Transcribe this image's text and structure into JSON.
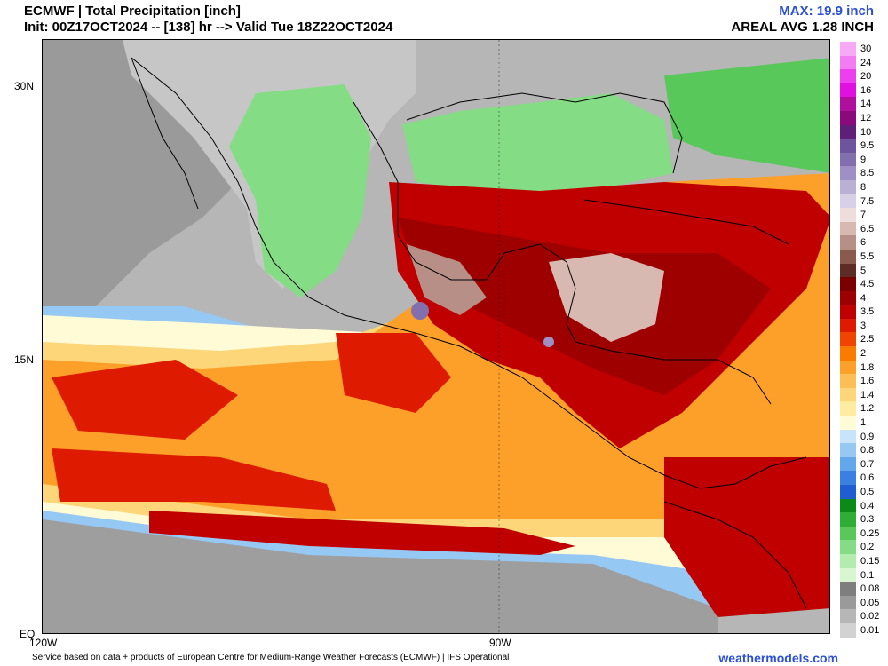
{
  "header": {
    "line1": "ECMWF | Total Precipitation [inch]",
    "line2": "Init: 00Z17OCT2024 -- [138] hr --> Valid Tue 18Z22OCT2024",
    "max": "MAX: 19.9 inch",
    "areal": "AREAL AVG 1.28 INCH"
  },
  "axes": {
    "lat_labels": [
      "30N",
      "15N",
      "EQ"
    ],
    "lon_labels": [
      "120W",
      "90W"
    ]
  },
  "legend": {
    "entries": [
      {
        "label": "30",
        "color": "#f7a8f7"
      },
      {
        "label": "24",
        "color": "#f27cf2"
      },
      {
        "label": "20",
        "color": "#ee3fee"
      },
      {
        "label": "16",
        "color": "#e010e0"
      },
      {
        "label": "14",
        "color": "#b0109e"
      },
      {
        "label": "12",
        "color": "#8a0a7c"
      },
      {
        "label": "10",
        "color": "#5e1f78"
      },
      {
        "label": "9.5",
        "color": "#6e549c"
      },
      {
        "label": "9",
        "color": "#8270ae"
      },
      {
        "label": "8.5",
        "color": "#9e90c4"
      },
      {
        "label": "8",
        "color": "#bab0d6"
      },
      {
        "label": "7.5",
        "color": "#d8d0e6"
      },
      {
        "label": "7",
        "color": "#efdcdc"
      },
      {
        "label": "6.5",
        "color": "#d7b9b2"
      },
      {
        "label": "6",
        "color": "#b78f86"
      },
      {
        "label": "5.5",
        "color": "#8a5a4e"
      },
      {
        "label": "5",
        "color": "#5e2c24"
      },
      {
        "label": "4.5",
        "color": "#7a0000"
      },
      {
        "label": "4",
        "color": "#9e0000"
      },
      {
        "label": "3.5",
        "color": "#c00000"
      },
      {
        "label": "3",
        "color": "#de1a00"
      },
      {
        "label": "2.5",
        "color": "#f04400"
      },
      {
        "label": "2",
        "color": "#fb7a00"
      },
      {
        "label": "1.8",
        "color": "#fda02a"
      },
      {
        "label": "1.6",
        "color": "#fdbe55"
      },
      {
        "label": "1.4",
        "color": "#fdd67a"
      },
      {
        "label": "1.2",
        "color": "#ffeca0"
      },
      {
        "label": "1",
        "color": "#fffbd6"
      },
      {
        "label": "0.9",
        "color": "#c8e4fb"
      },
      {
        "label": "0.8",
        "color": "#96c8f4"
      },
      {
        "label": "0.7",
        "color": "#62a6ec"
      },
      {
        "label": "0.6",
        "color": "#3a80e0"
      },
      {
        "label": "0.5",
        "color": "#1f5ed0"
      },
      {
        "label": "0.4",
        "color": "#0a8a16"
      },
      {
        "label": "0.3",
        "color": "#2eae36"
      },
      {
        "label": "0.25",
        "color": "#58c85a"
      },
      {
        "label": "0.2",
        "color": "#84dc84"
      },
      {
        "label": "0.15",
        "color": "#b2ecae"
      },
      {
        "label": "0.1",
        "color": "#d8f6d2"
      },
      {
        "label": "0.08",
        "color": "#7e7e7e"
      },
      {
        "label": "0.05",
        "color": "#9a9a9a"
      },
      {
        "label": "0.02",
        "color": "#b6b6b6"
      },
      {
        "label": "0.01",
        "color": "#d2d2d2"
      }
    ]
  },
  "footer": {
    "credit": "Service based on data + products of European Centre for Medium-Range Weather Forecasts (ECMWF) | IFS Operational",
    "brand": "weathermodels.com"
  }
}
